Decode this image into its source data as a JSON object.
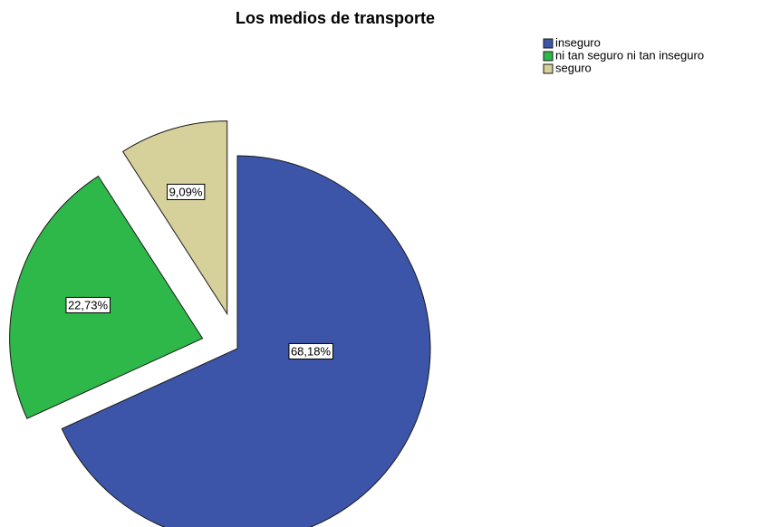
{
  "chart_data": {
    "type": "pie",
    "title": "Los medios de transporte",
    "categories": [
      "inseguro",
      "ni tan seguro ni tan inseguro",
      "seguro"
    ],
    "values": [
      68.18,
      22.73,
      9.09
    ],
    "value_labels": [
      "68,18%",
      "22,73%",
      "9,09%"
    ],
    "colors": [
      "#3c55a8",
      "#2eb84a",
      "#d6d09a"
    ],
    "legend": "top-right"
  }
}
